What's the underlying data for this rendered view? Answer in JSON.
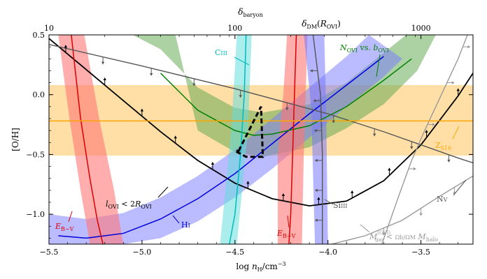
{
  "chart_data": {
    "type": "line",
    "xlabel": "log n_H/cm^-3",
    "ylabel": "[O/H]",
    "top_xlabels": [
      "δ_baryon",
      "δ_DM(R_OVI)"
    ],
    "xlim": [
      -5.5,
      -3.22
    ],
    "ylim": [
      -1.25,
      0.5
    ],
    "x_ticks": [
      -5.5,
      -5.0,
      -4.5,
      -4.0,
      -3.5
    ],
    "x_tick_labels": [
      "−5.5",
      "−5.0",
      "−4.5",
      "−4.0",
      "−3.5"
    ],
    "y_ticks": [
      -1.0,
      -0.5,
      0.0,
      0.5
    ],
    "y_tick_labels": [
      "−1.0",
      "−0.5",
      "0.0",
      "0.5"
    ],
    "top_ticks": [
      -5.5,
      -4.5,
      -3.5
    ],
    "top_tick_labels": [
      "10",
      "100",
      "1000"
    ],
    "colors": {
      "black": "#000000",
      "blue": "#0000dd",
      "green": "#008000",
      "cyan": "#00bbbb",
      "red": "#dd0000",
      "orange": "#ffa500",
      "gray": "#555555",
      "lightgray": "#999999"
    },
    "bands": [
      {
        "name": "E_B-V left",
        "color": "#ff7777",
        "alpha": 0.6,
        "left": [
          [
            -5.45,
            0.5
          ],
          [
            -5.39,
            -0.2
          ],
          [
            -5.33,
            -0.8
          ],
          [
            -5.28,
            -1.25
          ]
        ],
        "right": [
          [
            -5.31,
            0.5
          ],
          [
            -5.23,
            -0.2
          ],
          [
            -5.15,
            -0.8
          ],
          [
            -5.1,
            -1.25
          ]
        ]
      },
      {
        "name": "E_B-V right",
        "color": "#ff7777",
        "alpha": 0.6,
        "left": [
          [
            -4.22,
            0.5
          ],
          [
            -4.24,
            0.0
          ],
          [
            -4.27,
            -0.5
          ],
          [
            -4.27,
            -1.25
          ]
        ],
        "right": [
          [
            -4.11,
            0.5
          ],
          [
            -4.12,
            0.0
          ],
          [
            -4.13,
            -0.5
          ],
          [
            -4.14,
            -1.25
          ]
        ]
      },
      {
        "name": "CIII",
        "color": "#66dddd",
        "alpha": 0.55,
        "left": [
          [
            -4.49,
            0.5
          ],
          [
            -4.52,
            -0.3
          ],
          [
            -4.58,
            -1.25
          ]
        ],
        "right": [
          [
            -4.41,
            0.5
          ],
          [
            -4.43,
            -0.3
          ],
          [
            -4.49,
            -1.25
          ]
        ]
      },
      {
        "name": "DM(R_OVI) band",
        "color": "#7777ff",
        "alpha": 0.55,
        "left": [
          [
            -4.13,
            0.5
          ],
          [
            -4.09,
            -0.1
          ],
          [
            -4.07,
            -1.25
          ]
        ],
        "right": [
          [
            -4.02,
            0.5
          ],
          [
            -4.01,
            -0.1
          ],
          [
            -4.0,
            -1.25
          ]
        ]
      }
    ],
    "series": [
      {
        "name": "OVI constraint (l_OVI < 2R_OVI)",
        "color": "#000000",
        "x": [
          -5.5,
          -5.3,
          -5.1,
          -4.9,
          -4.7,
          -4.5,
          -4.3,
          -4.1,
          -3.9,
          -3.7,
          -3.5,
          -3.3,
          -3.22
        ],
        "y": [
          0.47,
          0.21,
          -0.05,
          -0.31,
          -0.55,
          -0.74,
          -0.87,
          -0.93,
          -0.89,
          -0.72,
          -0.42,
          -0.01,
          0.18
        ]
      },
      {
        "name": "HI",
        "color": "#0000dd",
        "x": [
          -5.45,
          -5.3,
          -5.1,
          -4.9,
          -4.7,
          -4.5,
          -4.3,
          -4.1,
          -3.9,
          -3.7
        ],
        "y": [
          -1.18,
          -1.2,
          -1.16,
          -1.04,
          -0.87,
          -0.66,
          -0.41,
          -0.16,
          0.08,
          0.32
        ]
      },
      {
        "name": "N_OVI vs. b_OVI",
        "color": "#008000",
        "x": [
          -4.9,
          -4.7,
          -4.5,
          -4.4,
          -4.3,
          -4.1,
          -3.9,
          -3.7,
          -3.55
        ],
        "y": [
          0.18,
          -0.13,
          -0.3,
          -0.34,
          -0.33,
          -0.26,
          -0.1,
          0.12,
          0.3
        ]
      },
      {
        "name": "CIII",
        "color": "#00bbbb",
        "x": [
          -4.44,
          -4.45,
          -4.47,
          -4.5,
          -4.53
        ],
        "y": [
          0.5,
          0.0,
          -0.5,
          -1.0,
          -1.25
        ]
      },
      {
        "name": "E_B-V (left)",
        "color": "#dd0000",
        "x": [
          -5.38,
          -5.33,
          -5.28,
          -5.24,
          -5.21
        ],
        "y": [
          0.5,
          -0.2,
          -0.7,
          -1.05,
          -1.25
        ]
      },
      {
        "name": "E_B-V (right)",
        "color": "#dd0000",
        "x": [
          -4.17,
          -4.18,
          -4.19,
          -4.2,
          -4.21
        ],
        "y": [
          0.5,
          0.0,
          -0.5,
          -1.0,
          -1.25
        ]
      },
      {
        "name": "δ_DM(R_OVI)",
        "color": "#555555",
        "x": [
          -4.08,
          -4.04,
          -4.03,
          -4.03
        ],
        "y": [
          0.5,
          0.0,
          -0.5,
          -1.25
        ]
      },
      {
        "name": "SiIII",
        "color": "#555555",
        "x": [
          -5.5,
          -5.0,
          -4.5,
          -4.0,
          -3.7,
          -3.5,
          -3.3,
          -3.22
        ],
        "y": [
          0.42,
          0.24,
          0.05,
          -0.16,
          -0.31,
          -0.42,
          -0.53,
          -0.57
        ]
      },
      {
        "name": "NV",
        "color": "#999999",
        "x": [
          -3.71,
          -3.62,
          -3.55,
          -3.48,
          -3.42,
          -3.36,
          -3.3,
          -3.25
        ],
        "y": [
          -1.25,
          -0.85,
          -0.55,
          -0.3,
          -0.1,
          0.1,
          0.3,
          0.5
        ]
      },
      {
        "name": "M_gas constraint",
        "color": "#999999",
        "x": [
          -3.98,
          -3.8,
          -3.6,
          -3.4,
          -3.22
        ],
        "y": [
          -1.25,
          -1.18,
          -1.05,
          -0.85,
          -0.68
        ]
      },
      {
        "name": "Z_S16",
        "color": "#ffa500",
        "x": [
          -5.5,
          -3.22
        ],
        "y": [
          -0.22,
          -0.22
        ]
      }
    ],
    "horizontal_band": {
      "name": "Z_S16 band",
      "color": "#ffc04d",
      "alpha": 0.5,
      "y0": -0.51,
      "y1": 0.08
    },
    "curved_bands": [
      {
        "name": "N_OVI vs b_OVI band",
        "color": "#5aa64a",
        "alpha": 0.5,
        "upper": [
          [
            -5.05,
            0.5
          ],
          [
            -4.9,
            0.38
          ],
          [
            -4.7,
            0.06
          ],
          [
            -4.5,
            -0.11
          ],
          [
            -4.35,
            -0.15
          ],
          [
            -4.1,
            -0.08
          ],
          [
            -3.9,
            0.1
          ],
          [
            -3.7,
            0.35
          ],
          [
            -3.58,
            0.5
          ]
        ],
        "lower": [
          [
            -4.82,
            0.5
          ],
          [
            -4.7,
            -0.3
          ],
          [
            -4.5,
            -0.48
          ],
          [
            -4.35,
            -0.52
          ],
          [
            -4.1,
            -0.44
          ],
          [
            -3.9,
            -0.28
          ],
          [
            -3.7,
            -0.08
          ],
          [
            -3.52,
            0.2
          ],
          [
            -3.42,
            0.5
          ]
        ]
      },
      {
        "name": "HI band",
        "color": "#7777ff",
        "alpha": 0.5,
        "upper": [
          [
            -5.5,
            -1.0
          ],
          [
            -5.3,
            -1.04
          ],
          [
            -5.1,
            -0.99
          ],
          [
            -4.9,
            -0.86
          ],
          [
            -4.7,
            -0.68
          ],
          [
            -4.5,
            -0.46
          ],
          [
            -4.3,
            -0.2
          ],
          [
            -4.1,
            0.06
          ],
          [
            -3.9,
            0.32
          ],
          [
            -3.78,
            0.5
          ]
        ],
        "lower": [
          [
            -5.5,
            -1.25
          ],
          [
            -5.3,
            -1.25
          ],
          [
            -5.1,
            -1.25
          ],
          [
            -4.9,
            -1.2
          ],
          [
            -4.7,
            -1.06
          ],
          [
            -4.5,
            -0.86
          ],
          [
            -4.3,
            -0.62
          ],
          [
            -4.1,
            -0.36
          ],
          [
            -3.9,
            -0.1
          ],
          [
            -3.7,
            0.15
          ],
          [
            -3.6,
            0.3
          ]
        ]
      }
    ],
    "dashed_region": {
      "color": "#000000",
      "x": [
        -4.48,
        -4.36,
        -4.35,
        -4.44,
        -4.5
      ],
      "y": [
        -0.47,
        -0.1,
        -0.52,
        -0.52,
        -0.47
      ]
    },
    "arrows": [
      {
        "series": "OVI constraint",
        "x": [
          -5.41,
          -5.2,
          -5.0,
          -4.82,
          -4.62,
          -4.43,
          -4.24,
          -4.05,
          -3.87,
          -3.67,
          -3.47,
          -3.3
        ],
        "dir": "up",
        "color": "#000000"
      },
      {
        "series": "SiIII",
        "x": [
          -5.21,
          -4.95,
          -4.72,
          -4.47,
          -4.22,
          -3.97,
          -3.75,
          -3.55,
          -3.35
        ],
        "dir": "down",
        "color": "#555555"
      },
      {
        "series": "δ_DM(R_OVI)",
        "y": [
          0.2,
          -0.05,
          -0.3,
          -0.55,
          -0.8,
          -1.05
        ],
        "dir": "left",
        "color": "#555555"
      },
      {
        "series": "NV",
        "y": [
          -0.62,
          -0.25,
          0.1,
          0.4
        ],
        "dir": "right",
        "color": "#999999"
      },
      {
        "series": "M_gas constraint",
        "x": [
          -3.9,
          -3.7,
          -3.5,
          -3.32
        ],
        "dir": "down",
        "color": "#999999"
      }
    ],
    "annotations": [
      {
        "text": "C",
        "sub": "III",
        "plain": "CIII",
        "color": "#00bbbb"
      },
      {
        "text": "N",
        "sub": "OVI",
        "mid": " vs. ",
        "text2": "b",
        "sub2": "OVI",
        "color": "#008000"
      },
      {
        "text": "Z",
        "sub": "S16",
        "color": "#ffa500"
      },
      {
        "text": "l",
        "sub": "OVI",
        "mid": " < 2",
        "text2": "R",
        "sub2": "OVI",
        "color": "#000000"
      },
      {
        "text": "E",
        "sub": "B−V",
        "color": "#dd0000"
      },
      {
        "text": "E",
        "sub": "B−V",
        "color": "#dd0000"
      },
      {
        "text": "H",
        "sub": "I",
        "plain": "HI",
        "color": "#0000dd"
      },
      {
        "text": "Si",
        "sub": "III",
        "plain": "SiIII",
        "color": "#555555"
      },
      {
        "text": "N",
        "sub": "V",
        "plain": "NV",
        "color": "#555555"
      },
      {
        "text": "M",
        "sub": "gas",
        "sup": "(OVI)",
        "mid": " < ",
        "text2": "Ωb/ΩM",
        "text3": " M",
        "sub3": "halo",
        "color": "#999999"
      }
    ]
  }
}
